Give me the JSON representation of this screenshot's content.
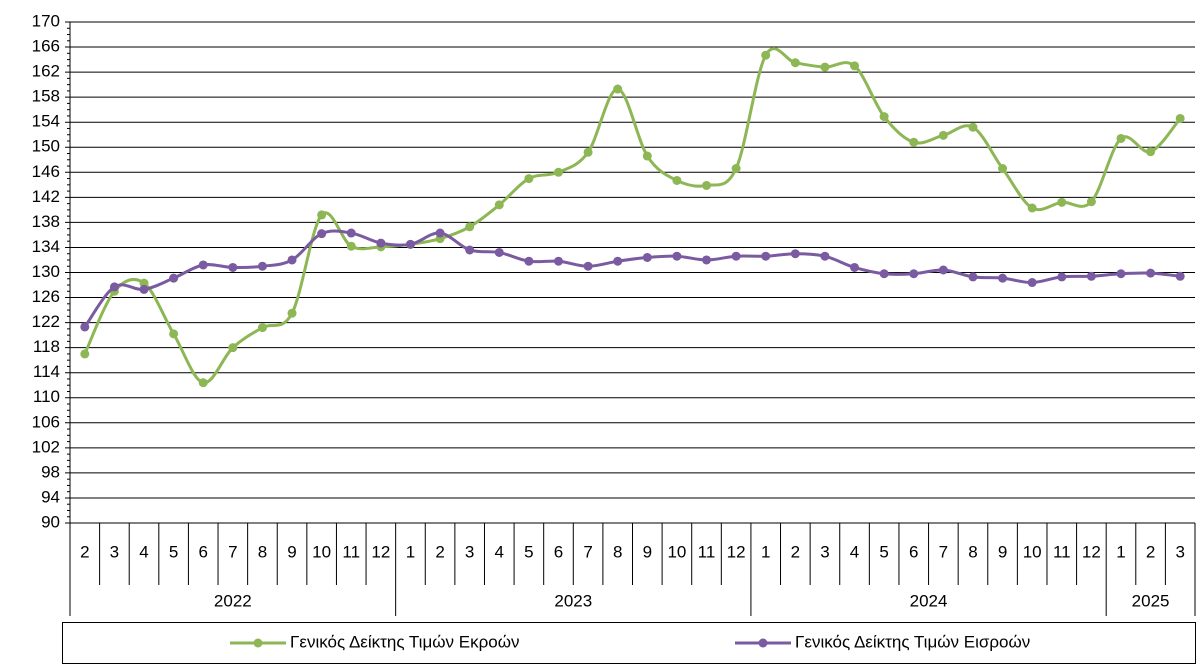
{
  "chart_data": {
    "type": "line",
    "categories": [
      {
        "year": "2022",
        "month": "2"
      },
      {
        "year": "2022",
        "month": "3"
      },
      {
        "year": "2022",
        "month": "4"
      },
      {
        "year": "2022",
        "month": "5"
      },
      {
        "year": "2022",
        "month": "6"
      },
      {
        "year": "2022",
        "month": "7"
      },
      {
        "year": "2022",
        "month": "8"
      },
      {
        "year": "2022",
        "month": "9"
      },
      {
        "year": "2022",
        "month": "10"
      },
      {
        "year": "2022",
        "month": "11"
      },
      {
        "year": "2022",
        "month": "12"
      },
      {
        "year": "2023",
        "month": "1"
      },
      {
        "year": "2023",
        "month": "2"
      },
      {
        "year": "2023",
        "month": "3"
      },
      {
        "year": "2023",
        "month": "4"
      },
      {
        "year": "2023",
        "month": "5"
      },
      {
        "year": "2023",
        "month": "6"
      },
      {
        "year": "2023",
        "month": "7"
      },
      {
        "year": "2023",
        "month": "8"
      },
      {
        "year": "2023",
        "month": "9"
      },
      {
        "year": "2023",
        "month": "10"
      },
      {
        "year": "2023",
        "month": "11"
      },
      {
        "year": "2023",
        "month": "12"
      },
      {
        "year": "2024",
        "month": "1"
      },
      {
        "year": "2024",
        "month": "2"
      },
      {
        "year": "2024",
        "month": "3"
      },
      {
        "year": "2024",
        "month": "4"
      },
      {
        "year": "2024",
        "month": "5"
      },
      {
        "year": "2024",
        "month": "6"
      },
      {
        "year": "2024",
        "month": "7"
      },
      {
        "year": "2024",
        "month": "8"
      },
      {
        "year": "2024",
        "month": "9"
      },
      {
        "year": "2024",
        "month": "10"
      },
      {
        "year": "2024",
        "month": "11"
      },
      {
        "year": "2024",
        "month": "12"
      },
      {
        "year": "2025",
        "month": "1"
      },
      {
        "year": "2025",
        "month": "2"
      },
      {
        "year": "2025",
        "month": "3"
      }
    ],
    "series": [
      {
        "name": "Γενικός Δείκτης Τιμών Εκροών",
        "color": "#8db654",
        "values": [
          117,
          127,
          128.3,
          120.2,
          112.4,
          118,
          121.2,
          123.5,
          139.2,
          134.2,
          134.1,
          134.5,
          135.4,
          137.3,
          140.8,
          145,
          146,
          149.2,
          159.3,
          148.6,
          144.7,
          143.9,
          146.6,
          164.7,
          163.5,
          162.8,
          163,
          154.9,
          150.8,
          151.9,
          153.2,
          146.6,
          140.3,
          141.2,
          141.3,
          151.4,
          149.3,
          154.6
        ]
      },
      {
        "name": "Γενικός Δείκτης Τιμών Εισροών",
        "color": "#7a5aa0",
        "values": [
          121.3,
          127.7,
          127.3,
          129.1,
          131.2,
          130.8,
          131,
          132,
          136.2,
          136.3,
          134.7,
          134.5,
          136.3,
          133.6,
          133.2,
          131.8,
          131.8,
          131,
          131.8,
          132.4,
          132.6,
          132,
          132.6,
          132.6,
          133,
          132.6,
          130.8,
          129.8,
          129.8,
          130.4,
          129.3,
          129.1,
          128.4,
          129.3,
          129.4,
          129.8,
          129.9,
          129.4
        ]
      }
    ],
    "ylim": [
      90,
      170
    ],
    "yticks": [
      90,
      94,
      98,
      102,
      106,
      110,
      114,
      118,
      122,
      126,
      130,
      134,
      138,
      142,
      146,
      150,
      154,
      158,
      162,
      166,
      170
    ],
    "grid": true
  }
}
